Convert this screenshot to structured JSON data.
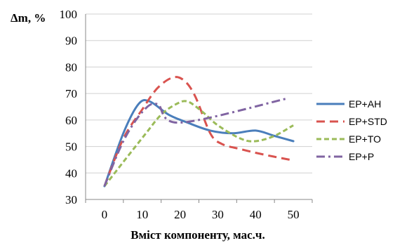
{
  "chart_data": {
    "type": "line",
    "ylabel": "Δm, %",
    "xlabel": "Вміст компоненту,  мас.ч.",
    "xlim": [
      -5,
      55
    ],
    "ylim": [
      30,
      100
    ],
    "x_ticks": [
      0,
      10,
      20,
      30,
      40,
      50
    ],
    "y_ticks": [
      30,
      40,
      50,
      60,
      70,
      80,
      90,
      100
    ],
    "grid": "horizontal",
    "legend_position": "right",
    "smooth": true,
    "series": [
      {
        "name": "EP+AH",
        "color": "#4a7ebb",
        "dash": "solid",
        "x": [
          0,
          5,
          9,
          12,
          17,
          22,
          28,
          34,
          40,
          45,
          50
        ],
        "y": [
          35,
          55,
          66,
          67,
          62,
          59,
          56,
          55,
          56,
          54,
          52
        ]
      },
      {
        "name": "EP+STD",
        "color": "#d9534f",
        "dash": "dashed",
        "x": [
          0,
          5,
          10,
          14,
          18,
          21,
          24,
          28,
          31,
          36,
          42,
          49
        ],
        "y": [
          35,
          53,
          64,
          72,
          76,
          75,
          69,
          55,
          51,
          49,
          47,
          45
        ]
      },
      {
        "name": "EP+TO",
        "color": "#9bbb59",
        "dash": "dotted",
        "x": [
          0,
          6,
          11,
          15,
          19,
          22,
          26,
          30,
          36,
          40,
          45,
          50
        ],
        "y": [
          35,
          46,
          55,
          62,
          66,
          67,
          63,
          58,
          53,
          52,
          54,
          58
        ]
      },
      {
        "name": "EP+P",
        "color": "#8064a2",
        "dash": "dashdot",
        "x": [
          0,
          5,
          10,
          14,
          20,
          48
        ],
        "y": [
          35,
          52,
          63,
          66,
          59,
          68
        ]
      }
    ]
  }
}
